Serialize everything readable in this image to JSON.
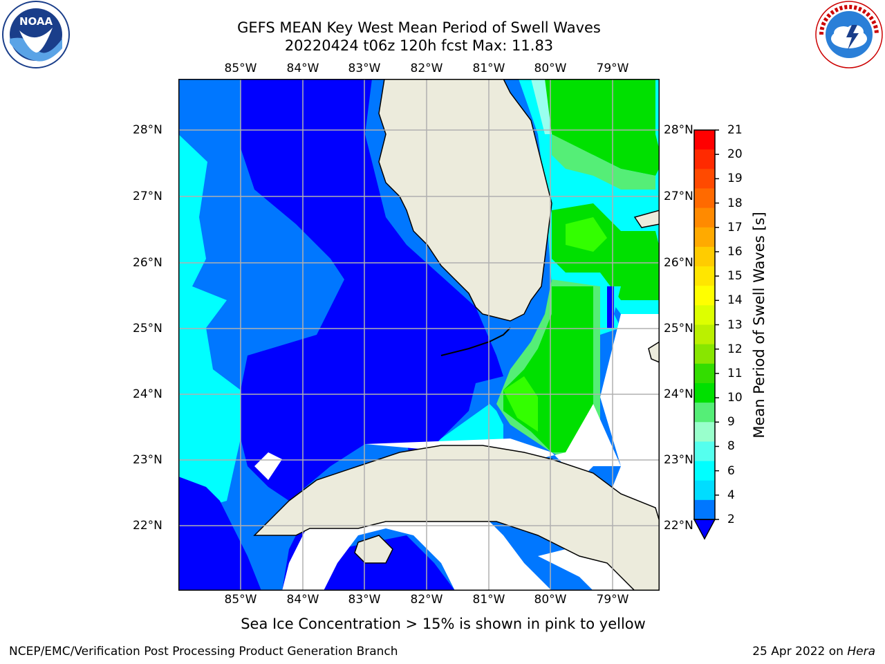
{
  "title_line1": "GEFS MEAN Key West Mean Period of Swell Waves",
  "title_line2": "20220424 t06z 120h fcst   Max: 11.83",
  "lon_labels": [
    "85°W",
    "84°W",
    "83°W",
    "82°W",
    "81°W",
    "80°W",
    "79°W"
  ],
  "lat_labels": [
    "28°N",
    "27°N",
    "26°N",
    "25°N",
    "24°N",
    "23°N",
    "22°N"
  ],
  "colorbar": {
    "label": "Mean Period of Swell Waves [s]",
    "ticks": [
      "21",
      "20",
      "19",
      "18",
      "17",
      "16",
      "15",
      "14",
      "13",
      "12",
      "11",
      "10",
      "9",
      "8",
      "6",
      "4",
      "2"
    ],
    "colors": [
      "#ff0000",
      "#ff2a00",
      "#ff4a00",
      "#ff6a00",
      "#ff8a00",
      "#ffaa00",
      "#ffcc00",
      "#ffe600",
      "#ffff00",
      "#ddff00",
      "#bbf000",
      "#88e600",
      "#33dd00",
      "#00e000",
      "#55ee77",
      "#99ffcc",
      "#55ffee",
      "#00ffff",
      "#00ddff",
      "#0077ff",
      "#0000ff"
    ]
  },
  "footnote": "Sea Ice Concentration > 15% is shown in pink to yellow",
  "footer_left": "NCEP/EMC/Verification Post Processing Product Generation Branch",
  "footer_right_prefix": "25 Apr 2022 on ",
  "footer_right_host": "Hera",
  "map_colors": {
    "land": "#ecebdc",
    "deep": "#0000ff",
    "mid": "#0077ff",
    "cyan": "#00ffff",
    "lightcyan": "#99ffee",
    "paleGreen": "#55ee77",
    "green": "#00e000",
    "brightgreen": "#33ff00",
    "grid": "#b0b0b0"
  },
  "noaa_text": "NOAA"
}
